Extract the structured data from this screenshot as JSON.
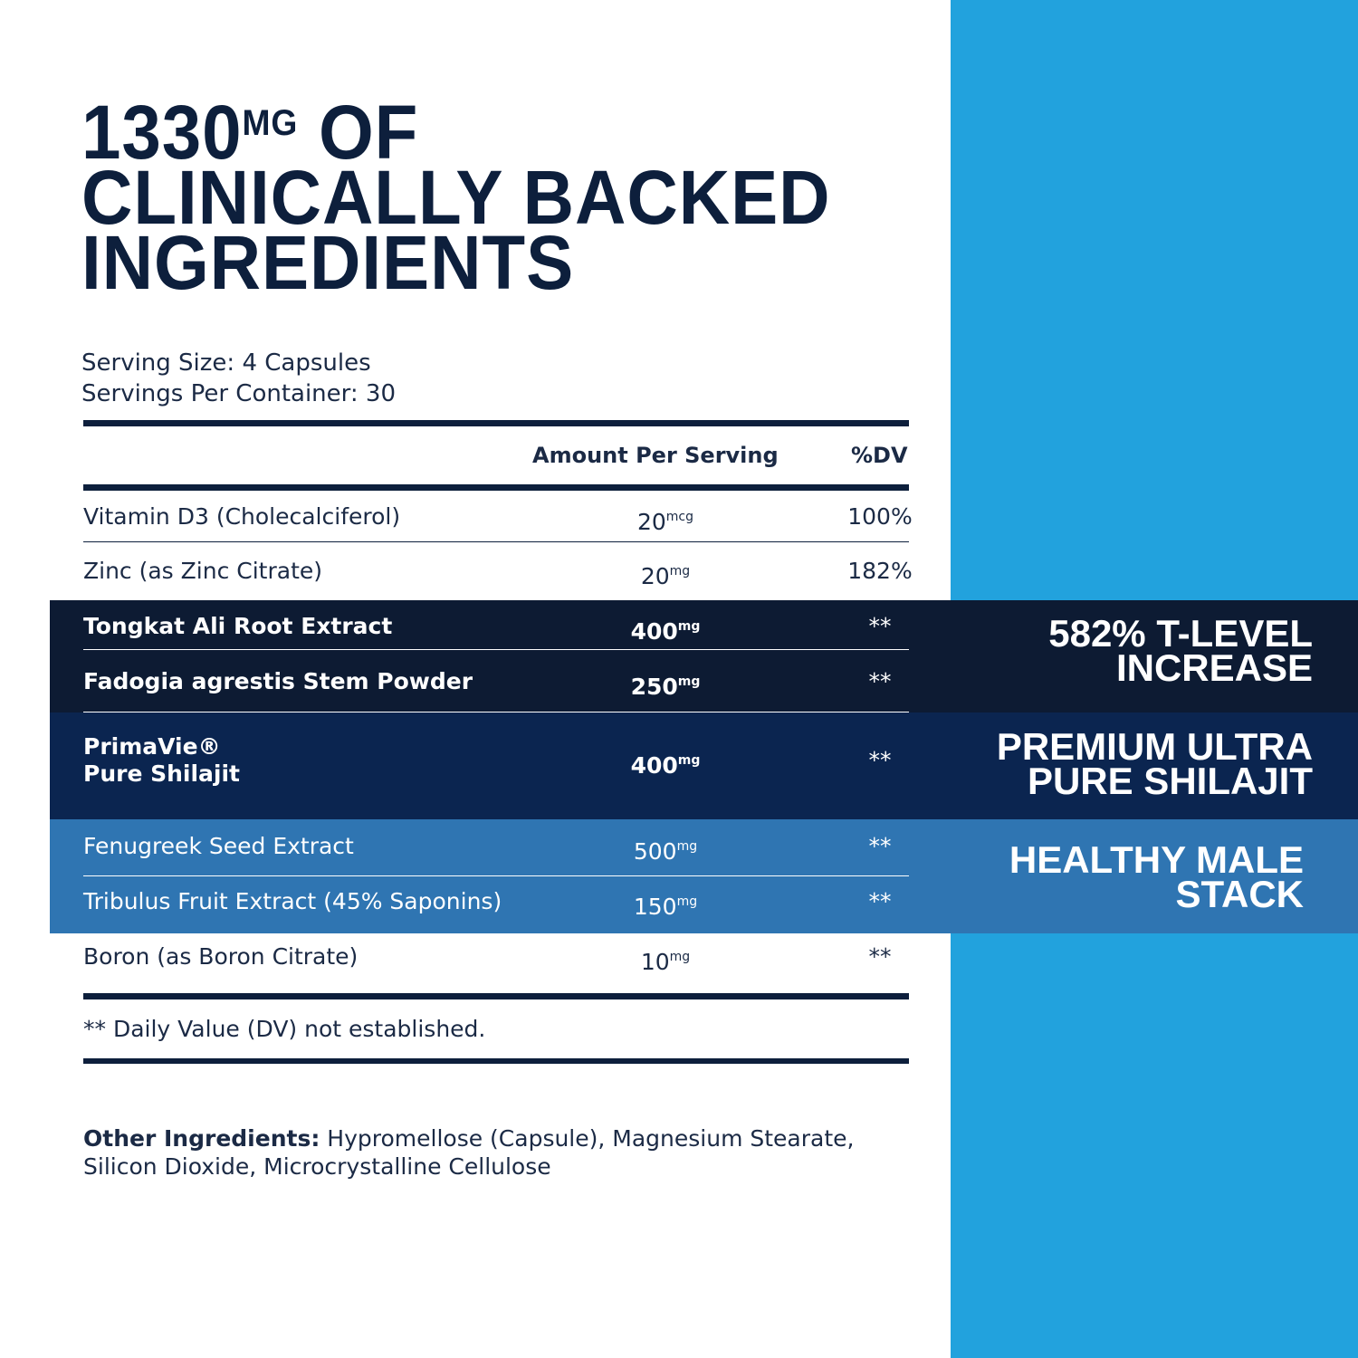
{
  "header": {
    "number": "1330",
    "unit": "MG",
    "rest": "OF",
    "line2": "CLINICALLY BACKED",
    "line3": "INGREDIENTS"
  },
  "serving": {
    "size": "Serving Size: 4 Capsules",
    "per_container": "Servings Per Container: 30"
  },
  "table": {
    "columns": [
      "Amount Per Serving",
      "%DV"
    ],
    "rows": [
      {
        "name": [
          "Vitamin D3 (Cholecalciferol)"
        ],
        "amount": "20",
        "unit": "mcg",
        "dv": "100%"
      },
      {
        "name": [
          "Zinc (as Zinc Citrate)"
        ],
        "amount": "20",
        "unit": "mg",
        "dv": "182%"
      },
      {
        "name": [
          "Tongkat Ali Root Extract"
        ],
        "amount": "400",
        "unit": "mg",
        "dv": "**"
      },
      {
        "name": [
          "Fadogia agrestis Stem Powder"
        ],
        "amount": "250",
        "unit": "mg",
        "dv": "**"
      },
      {
        "name": [
          "PrimaVie®",
          "Pure Shilajit"
        ],
        "amount": "400",
        "unit": "mg",
        "dv": "**"
      },
      {
        "name": [
          "Fenugreek Seed Extract"
        ],
        "amount": "500",
        "unit": "mg",
        "dv": "**"
      },
      {
        "name": [
          "Tribulus Fruit Extract (45% Saponins)"
        ],
        "amount": "150",
        "unit": "mg",
        "dv": "**"
      },
      {
        "name": [
          "Boron (as Boron Citrate)"
        ],
        "amount": "10",
        "unit": "mg",
        "dv": "**"
      }
    ]
  },
  "callouts": [
    [
      "582% T-LEVEL",
      "INCREASE"
    ],
    [
      "PREMIUM ULTRA",
      "PURE SHILAJIT"
    ],
    [
      "HEALTHY MALE",
      "STACK"
    ]
  ],
  "footnote": "** Daily Value (DV) not established.",
  "other": {
    "label": "Other Ingredients:",
    "text": "Hypromellose (Capsule), Magnesium Stearate, Silicon Dioxide, Microcrystalline Cellulose"
  }
}
